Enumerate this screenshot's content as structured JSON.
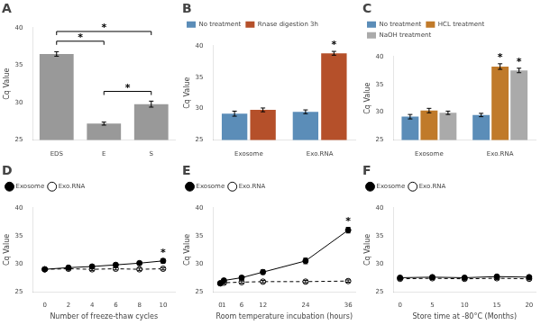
{
  "chart_data": [
    {
      "type": "bar",
      "title": "A",
      "categories": [
        "EDS",
        "E",
        "S"
      ],
      "values": [
        36.5,
        27.2,
        29.8
      ],
      "errors": [
        0.3,
        0.2,
        0.4
      ],
      "color": "#999999",
      "ylabel": "Cq Value",
      "ylim": [
        25,
        40
      ],
      "yticks": [
        25,
        30,
        35,
        40
      ],
      "grid": false,
      "annotations": [
        {
          "text": "*",
          "x1": "EDS",
          "x2": "E",
          "y": 38.2
        },
        {
          "text": "*",
          "x1": "EDS",
          "x2": "S",
          "y": 39.5
        },
        {
          "text": "*",
          "x1": "E",
          "x2": "S",
          "y": 31.5
        }
      ]
    },
    {
      "type": "bar",
      "title": "B",
      "categories": [
        "Exosome",
        "Exo.RNA"
      ],
      "series": [
        {
          "name": "No treatment",
          "color": "#5b8db8",
          "values": [
            29.2,
            29.5
          ],
          "errors": [
            0.4,
            0.3
          ]
        },
        {
          "name": "Rnase digestion 3h",
          "color": "#b5502a",
          "values": [
            29.8,
            38.8
          ],
          "errors": [
            0.3,
            0.3
          ]
        }
      ],
      "ylabel": "Cq Value",
      "ylim": [
        25,
        40
      ],
      "yticks": [
        25,
        30,
        35,
        40
      ],
      "grid": false,
      "legend": "upper left",
      "annotations": [
        {
          "text": "*",
          "x": "Exo.RNA",
          "series": "Rnase digestion 3h"
        }
      ]
    },
    {
      "type": "bar",
      "title": "C",
      "categories": [
        "Exosome",
        "Exo.RNA"
      ],
      "series": [
        {
          "name": "No treatment",
          "color": "#5b8db8",
          "values": [
            29.2,
            29.5
          ],
          "errors": [
            0.4,
            0.3
          ]
        },
        {
          "name": "HCL treatment",
          "color": "#c07a2a",
          "values": [
            30.3,
            38.2
          ],
          "errors": [
            0.4,
            0.5
          ]
        },
        {
          "name": "NaOH treatment",
          "color": "#aaaaaa",
          "values": [
            29.9,
            37.5
          ],
          "errors": [
            0.3,
            0.4
          ]
        }
      ],
      "ylabel": "Cq Value",
      "ylim": [
        25,
        40
      ],
      "yticks": [
        25,
        30,
        35,
        40
      ],
      "grid": false,
      "legend": "upper left",
      "annotations": [
        {
          "text": "*",
          "x": "Exo.RNA",
          "series": "HCL treatment"
        },
        {
          "text": "*",
          "x": "Exo.RNA",
          "series": "NaOH treatment"
        }
      ]
    },
    {
      "type": "line",
      "title": "D",
      "xlabel": "Number of freeze-thaw cycles",
      "ylabel": "Cq Value",
      "xlim": [
        -1,
        11
      ],
      "xticks": [
        0,
        2,
        4,
        6,
        8,
        10
      ],
      "ylim": [
        25,
        40
      ],
      "yticks": [
        25,
        30,
        35,
        40
      ],
      "grid": false,
      "legend": "upper left",
      "series": [
        {
          "name": "Exosome",
          "color": "#000000",
          "line_style": "solid",
          "marker": "circle",
          "x": [
            0,
            2,
            4,
            6,
            8,
            10
          ],
          "values": [
            29.0,
            29.3,
            29.5,
            29.8,
            30.1,
            30.5
          ],
          "errors": [
            0.2,
            0.3,
            0.2,
            0.3,
            0.3,
            0.4
          ]
        },
        {
          "name": "Exo.RNA",
          "color": "#000000",
          "line_style": "dashed",
          "marker": "open circle",
          "x": [
            0,
            2,
            4,
            6,
            8,
            10
          ],
          "values": [
            29.0,
            29.1,
            29.0,
            29.1,
            29.0,
            29.1
          ],
          "errors": [
            0.2,
            0.2,
            0.2,
            0.2,
            0.2,
            0.2
          ]
        }
      ],
      "annotations": [
        {
          "text": "*",
          "x": 10,
          "series": "Exosome"
        }
      ]
    },
    {
      "type": "line",
      "title": "E",
      "xlabel": "Room temperature incubation (hours)",
      "ylabel": "Cq Value",
      "xlim": [
        -2,
        38
      ],
      "xticks": [
        0,
        1,
        6,
        12,
        24,
        36
      ],
      "ylim": [
        25,
        40
      ],
      "yticks": [
        25,
        30,
        35,
        40
      ],
      "grid": false,
      "legend": "upper left",
      "series": [
        {
          "name": "Exosome",
          "color": "#000000",
          "line_style": "solid",
          "marker": "circle",
          "x": [
            0,
            1,
            6,
            12,
            24,
            36
          ],
          "values": [
            26.5,
            27.0,
            27.5,
            28.5,
            30.5,
            36.0
          ],
          "errors": [
            0.3,
            0.3,
            0.3,
            0.4,
            0.5,
            0.5
          ]
        },
        {
          "name": "Exo.RNA",
          "color": "#000000",
          "line_style": "dashed",
          "marker": "open circle",
          "x": [
            0,
            1,
            6,
            12,
            24,
            36
          ],
          "values": [
            26.5,
            26.6,
            26.7,
            26.8,
            26.8,
            26.9
          ],
          "errors": [
            0.2,
            0.2,
            0.2,
            0.2,
            0.2,
            0.2
          ]
        }
      ],
      "annotations": [
        {
          "text": "*",
          "x": 36,
          "series": "Exosome"
        }
      ]
    },
    {
      "type": "line",
      "title": "F",
      "xlabel": "Store time at -80°C (Months)",
      "ylabel": "Cq Value",
      "xlim": [
        -1,
        21
      ],
      "xticks": [
        0,
        5,
        10,
        15,
        20
      ],
      "ylim": [
        25,
        40
      ],
      "yticks": [
        25,
        30,
        35,
        40
      ],
      "grid": false,
      "legend": "upper left",
      "series": [
        {
          "name": "Exosome",
          "color": "#000000",
          "line_style": "solid",
          "marker": "circle",
          "x": [
            0,
            5,
            10,
            15,
            20
          ],
          "values": [
            27.5,
            27.6,
            27.5,
            27.7,
            27.6
          ],
          "errors": [
            0.2,
            0.2,
            0.2,
            0.2,
            0.2
          ]
        },
        {
          "name": "Exo.RNA",
          "color": "#000000",
          "line_style": "dashed",
          "marker": "open circle",
          "x": [
            0,
            5,
            10,
            15,
            20
          ],
          "values": [
            27.3,
            27.4,
            27.3,
            27.4,
            27.3
          ],
          "errors": [
            0.2,
            0.2,
            0.2,
            0.2,
            0.2
          ]
        }
      ]
    }
  ]
}
